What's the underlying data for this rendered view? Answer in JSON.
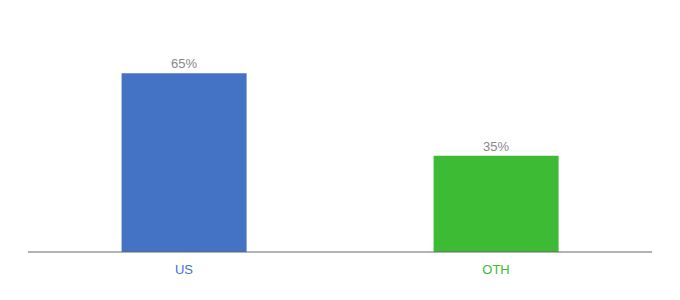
{
  "chart_data": {
    "type": "bar",
    "categories": [
      "US",
      "OTH"
    ],
    "values": [
      65,
      35
    ],
    "value_labels": [
      "65%",
      "35%"
    ],
    "colors": [
      "#4472c4",
      "#3dbb35"
    ],
    "ylim": [
      0,
      80
    ],
    "data_labels": true,
    "tick_labels": "x",
    "grid": false
  }
}
